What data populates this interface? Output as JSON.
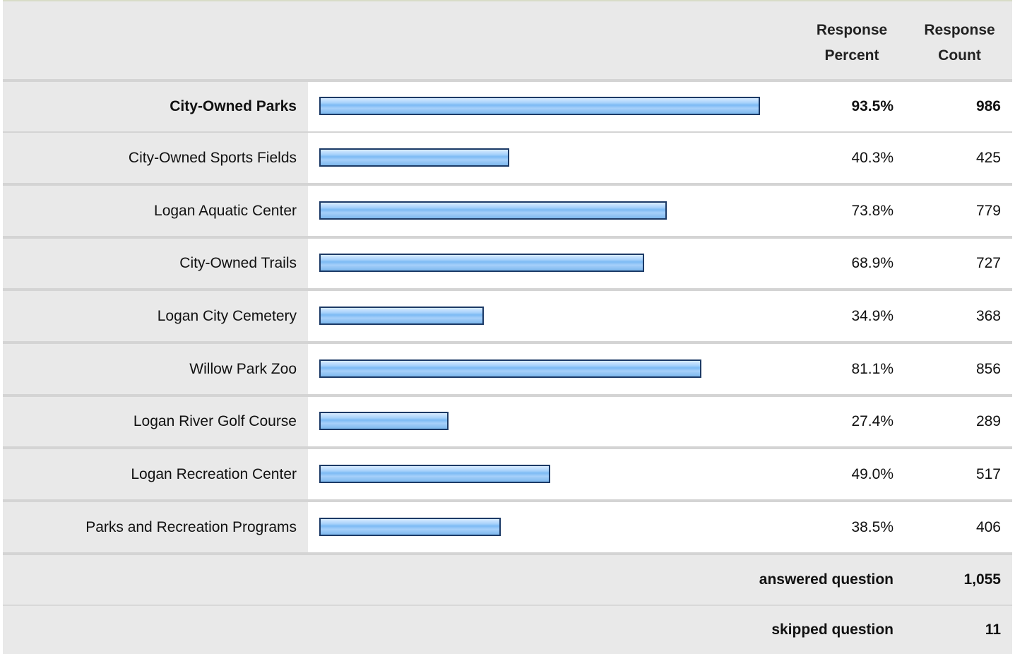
{
  "header": {
    "percent_col": "Response Percent",
    "percent_col_line1": "Response",
    "percent_col_line2": "Percent",
    "count_col_line1": "Response",
    "count_col_line2": "Count"
  },
  "chart_data": {
    "type": "bar",
    "orientation": "horizontal",
    "categories": [
      "City-Owned Parks",
      "City-Owned Sports Fields",
      "Logan Aquatic Center",
      "City-Owned Trails",
      "Logan City Cemetery",
      "Willow Park Zoo",
      "Logan River Golf Course",
      "Logan Recreation Center",
      "Parks and Recreation Programs"
    ],
    "percent_labels": [
      "93.5%",
      "40.3%",
      "73.8%",
      "68.9%",
      "34.9%",
      "81.1%",
      "27.4%",
      "49.0%",
      "38.5%"
    ],
    "values": [
      93.5,
      40.3,
      73.8,
      68.9,
      34.9,
      81.1,
      27.4,
      49.0,
      38.5
    ],
    "counts": [
      "986",
      "425",
      "779",
      "727",
      "368",
      "856",
      "289",
      "517",
      "406"
    ],
    "xlim": [
      0,
      100
    ],
    "bar_color": "#7cbaf4",
    "bar_border_color": "#1c3a66"
  },
  "footer": {
    "answered_label": "answered question",
    "answered_value": "1,055",
    "skipped_label": "skipped question",
    "skipped_value": "11"
  }
}
